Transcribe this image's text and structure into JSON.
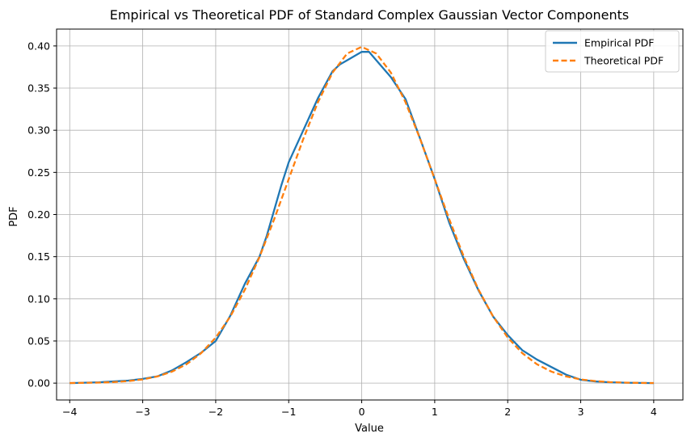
{
  "chart_data": {
    "type": "line",
    "title": "Empirical vs Theoretical PDF of Standard Complex Gaussian Vector Components",
    "xlabel": "Value",
    "ylabel": "PDF",
    "xlim": [
      -4.18,
      4.4
    ],
    "ylim": [
      -0.02,
      0.42
    ],
    "xticks": [
      -4,
      -3,
      -2,
      -1,
      0,
      1,
      2,
      3,
      4
    ],
    "xtick_labels": [
      "−4",
      "−3",
      "−2",
      "−1",
      "0",
      "1",
      "2",
      "3",
      "4"
    ],
    "yticks": [
      0.0,
      0.05,
      0.1,
      0.15,
      0.2,
      0.25,
      0.3,
      0.35,
      0.4
    ],
    "ytick_labels": [
      "0.00",
      "0.05",
      "0.10",
      "0.15",
      "0.20",
      "0.25",
      "0.30",
      "0.35",
      "0.40"
    ],
    "grid": true,
    "legend_position": "top-right",
    "series": [
      {
        "name": "Empirical PDF",
        "color": "#1f77b4",
        "style": "solid",
        "x": [
          -4,
          -3.6,
          -3.2,
          -3.0,
          -2.8,
          -2.6,
          -2.4,
          -2.2,
          -2.0,
          -1.8,
          -1.6,
          -1.4,
          -1.3,
          -1.2,
          -1.1,
          -1.0,
          -0.8,
          -0.6,
          -0.4,
          -0.3,
          -0.2,
          -0.1,
          0.0,
          0.1,
          0.2,
          0.4,
          0.6,
          0.8,
          1.0,
          1.2,
          1.4,
          1.6,
          1.8,
          2.0,
          2.2,
          2.4,
          2.6,
          2.8,
          3.0,
          3.2,
          3.4,
          3.6,
          4.0
        ],
        "y": [
          0.0,
          0.001,
          0.003,
          0.005,
          0.008,
          0.015,
          0.025,
          0.036,
          0.05,
          0.08,
          0.118,
          0.15,
          0.175,
          0.205,
          0.235,
          0.262,
          0.3,
          0.338,
          0.37,
          0.378,
          0.383,
          0.388,
          0.393,
          0.393,
          0.383,
          0.363,
          0.337,
          0.29,
          0.242,
          0.19,
          0.147,
          0.11,
          0.079,
          0.057,
          0.039,
          0.028,
          0.019,
          0.01,
          0.004,
          0.002,
          0.001,
          0.0005,
          0.0
        ]
      },
      {
        "name": "Theoretical PDF",
        "color": "#ff7f0e",
        "style": "dashed",
        "x": [
          -4,
          -3.8,
          -3.6,
          -3.4,
          -3.2,
          -3.0,
          -2.8,
          -2.6,
          -2.4,
          -2.2,
          -2.0,
          -1.8,
          -1.6,
          -1.4,
          -1.2,
          -1.0,
          -0.8,
          -0.6,
          -0.4,
          -0.2,
          0.0,
          0.2,
          0.4,
          0.6,
          0.8,
          1.0,
          1.2,
          1.4,
          1.6,
          1.8,
          2.0,
          2.2,
          2.4,
          2.6,
          2.8,
          3.0,
          3.2,
          3.4,
          3.6,
          3.8,
          4.0
        ],
        "y": [
          0.0001,
          0.0003,
          0.0006,
          0.0012,
          0.0024,
          0.0044,
          0.0079,
          0.0136,
          0.0224,
          0.0355,
          0.054,
          0.079,
          0.1109,
          0.1497,
          0.1942,
          0.242,
          0.2897,
          0.3332,
          0.3683,
          0.391,
          0.3989,
          0.391,
          0.3683,
          0.3332,
          0.2897,
          0.242,
          0.1942,
          0.1497,
          0.1109,
          0.079,
          0.054,
          0.0355,
          0.0224,
          0.0136,
          0.0079,
          0.0044,
          0.0024,
          0.0012,
          0.0006,
          0.0003,
          0.0001
        ]
      }
    ]
  }
}
